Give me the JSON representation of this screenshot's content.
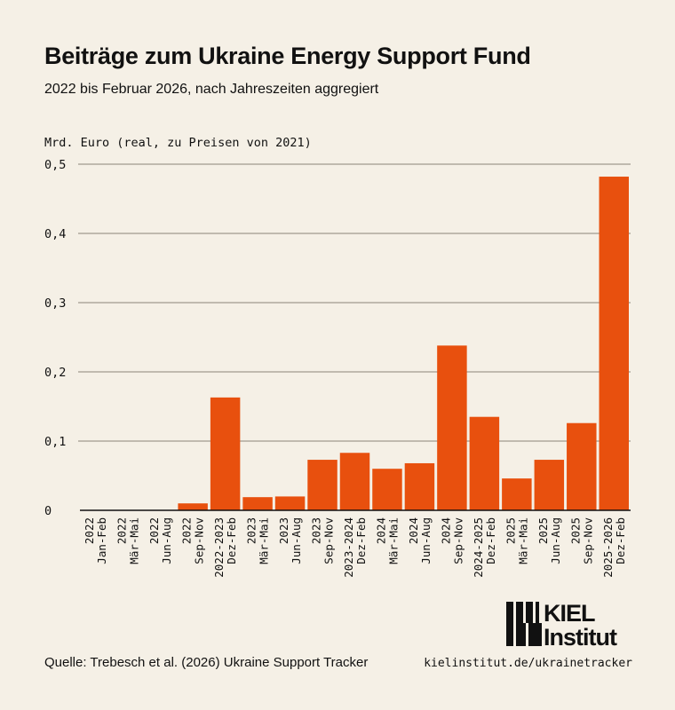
{
  "chart_data": {
    "type": "bar",
    "title": "Beiträge zum Ukraine Energy Support Fund",
    "subtitle": "2022 bis Februar 2026, nach Jahreszeiten aggregiert",
    "ylabel": "Mrd. Euro (real, zu Preisen von 2021)",
    "xlabel": "",
    "ylim": [
      0,
      0.5
    ],
    "yticks": [
      0,
      0.1,
      0.2,
      0.3,
      0.4,
      0.5
    ],
    "ytick_labels": [
      "0",
      "0,1",
      "0,2",
      "0,3",
      "0,4",
      "0,5"
    ],
    "grid": true,
    "bar_color": "#e8500e",
    "categories": [
      [
        "2022",
        "Jan-Feb"
      ],
      [
        "2022",
        "Mär-Mai"
      ],
      [
        "2022",
        "Jun-Aug"
      ],
      [
        "2022",
        "Sep-Nov"
      ],
      [
        "2022-2023",
        "Dez-Feb"
      ],
      [
        "2023",
        "Mär-Mai"
      ],
      [
        "2023",
        "Jun-Aug"
      ],
      [
        "2023",
        "Sep-Nov"
      ],
      [
        "2023-2024",
        "Dez-Feb"
      ],
      [
        "2024",
        "Mär-Mai"
      ],
      [
        "2024",
        "Jun-Aug"
      ],
      [
        "2024",
        "Sep-Nov"
      ],
      [
        "2024-2025",
        "Dez-Feb"
      ],
      [
        "2025",
        "Mär-Mai"
      ],
      [
        "2025",
        "Jun-Aug"
      ],
      [
        "2025",
        "Sep-Nov"
      ],
      [
        "2025-2026",
        "Dez-Feb"
      ]
    ],
    "values": [
      0,
      0,
      0,
      0.01,
      0.163,
      0.019,
      0.02,
      0.073,
      0.083,
      0.06,
      0.068,
      0.238,
      0.135,
      0.046,
      0.073,
      0.126,
      0.482
    ]
  },
  "footer": {
    "source": "Quelle: Trebesch et al. (2026) Ukraine Support Tracker",
    "url": "kielinstitut.de/ukrainetracker",
    "logo_text": [
      "KIEL",
      "Institut"
    ]
  }
}
